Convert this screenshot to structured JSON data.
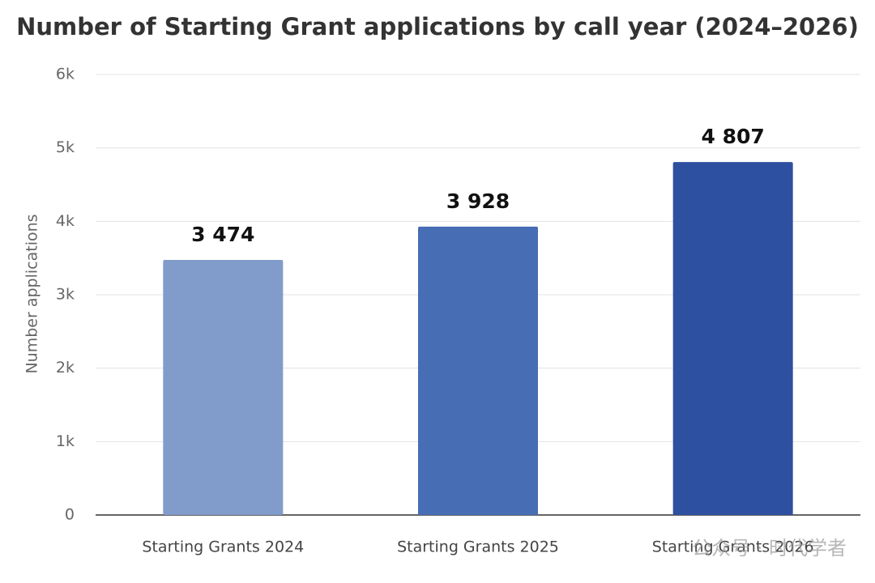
{
  "chart_data": {
    "type": "bar",
    "title": "Number of Starting Grant applications by call year (2024–2026)",
    "y_label": "Number applications",
    "categories": [
      "Starting Grants 2024",
      "Starting Grants 2025",
      "Starting Grants 2026"
    ],
    "values": [
      3474,
      3928,
      4807
    ],
    "value_labels": [
      "3 474",
      "3 928",
      "4 807"
    ],
    "colors": [
      "#819bcb",
      "#476db5",
      "#2e50a0"
    ],
    "ylim": [
      0,
      6000
    ],
    "yticks": [
      0,
      {
        "value": 1000,
        "label": "1k"
      },
      {
        "value": 2000,
        "label": "2k"
      },
      {
        "value": 3000,
        "label": "3k"
      },
      {
        "value": 4000,
        "label": "4k"
      },
      {
        "value": 5000,
        "label": "5k"
      },
      {
        "value": 6000,
        "label": "6k"
      }
    ],
    "grid": true,
    "watermark": "公众号 · 时代学者"
  }
}
